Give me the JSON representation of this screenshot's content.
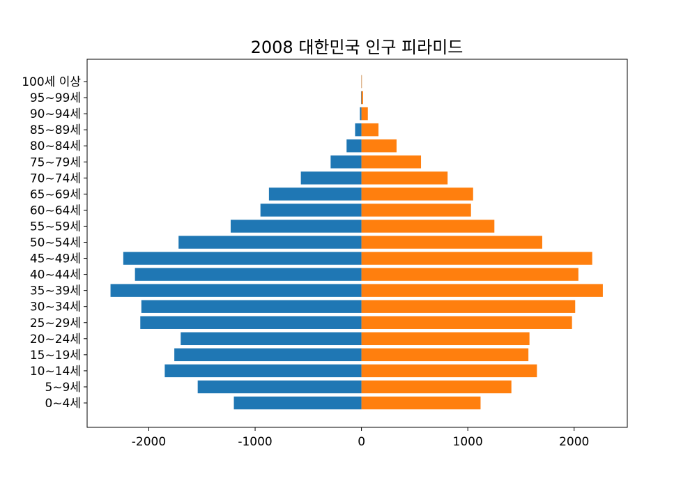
{
  "chart_data": {
    "type": "bar",
    "orientation": "horizontal",
    "title": "2008 대한민국 인구 피라미드",
    "xlabel": "",
    "ylabel": "",
    "categories": [
      "0~4세",
      "5~9세",
      "10~14세",
      "15~19세",
      "20~24세",
      "25~29세",
      "30~34세",
      "35~39세",
      "40~44세",
      "45~49세",
      "50~54세",
      "55~59세",
      "60~64세",
      "65~69세",
      "70~74세",
      "75~79세",
      "80~84세",
      "85~89세",
      "90~94세",
      "95~99세",
      "100세 이상"
    ],
    "series": [
      {
        "color": "#1f77b4",
        "values": [
          -1200,
          -1540,
          -1850,
          -1760,
          -1700,
          -2080,
          -2070,
          -2360,
          -2130,
          -2240,
          -1720,
          -1230,
          -950,
          -870,
          -570,
          -290,
          -140,
          -60,
          -15,
          -4,
          -1
        ]
      },
      {
        "color": "#ff7f0e",
        "values": [
          1120,
          1410,
          1650,
          1570,
          1580,
          1980,
          2010,
          2270,
          2040,
          2170,
          1700,
          1250,
          1030,
          1050,
          810,
          560,
          330,
          160,
          60,
          15,
          3
        ]
      }
    ],
    "xlim": [
      -2580,
      2500
    ],
    "xticks": [
      -2000,
      -1000,
      0,
      1000,
      2000
    ],
    "xtick_labels": [
      "-2000",
      "-1000",
      "0",
      "1000",
      "2000"
    ],
    "grid": false,
    "legend": "none"
  }
}
